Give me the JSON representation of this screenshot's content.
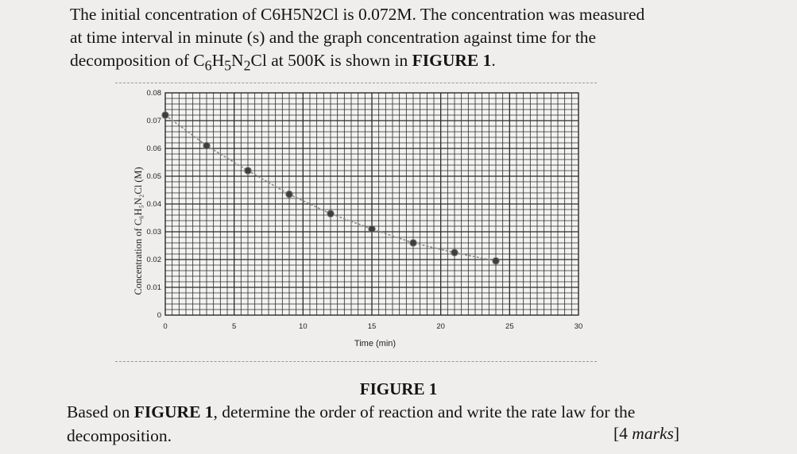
{
  "question": {
    "line1_a": "The initial concentration of C6H5N2Cl is 0.072M. The concentration was measured",
    "line2": "at time interval in minute (s) and the graph concentration against time for the",
    "line3_a": "decomposition of C",
    "line3_sub1": "6",
    "line3_b": "H",
    "line3_sub2": "5",
    "line3_c": "N",
    "line3_sub3": "2",
    "line3_d": "Cl at 500K is shown in ",
    "line3_bold": "FIGURE 1",
    "line3_end": "."
  },
  "figure_caption": "FIGURE 1",
  "task": {
    "part1": "Based on ",
    "bold": "FIGURE 1",
    "part2": ", determine the order of reaction and write the rate law for the",
    "part3": "decomposition."
  },
  "marks": {
    "open": "[4 ",
    "word": "marks",
    "close": "]"
  },
  "chart_data": {
    "type": "line",
    "xlabel": "Time (min)",
    "ylabel": "Concentration of C₆H₅N₂Cl (M)",
    "x_ticks": [
      0,
      5,
      10,
      15,
      20,
      25,
      30
    ],
    "x_tick_labels": [
      "0",
      "5",
      "10",
      "15",
      "20",
      "25",
      "30"
    ],
    "y_ticks": [
      0,
      0.01,
      0.02,
      0.03,
      0.04,
      0.05,
      0.06,
      0.07,
      0.08
    ],
    "y_tick_labels": [
      "0",
      "0.01",
      "0.02",
      "0.03",
      "0.04",
      "0.05",
      "0.06",
      "0.07",
      "0.08"
    ],
    "xlim": [
      0,
      30
    ],
    "ylim": [
      0,
      0.08
    ],
    "grid": true,
    "series": [
      {
        "x": [
          0,
          3,
          6,
          9,
          12,
          15,
          18,
          21,
          24
        ],
        "y": [
          0.072,
          0.061,
          0.052,
          0.0435,
          0.0365,
          0.031,
          0.026,
          0.0225,
          0.0195
        ]
      }
    ],
    "colors": {
      "line": "#8a8a8a",
      "marker": "#3e3e3e",
      "grid": "#2a2a2a"
    }
  }
}
